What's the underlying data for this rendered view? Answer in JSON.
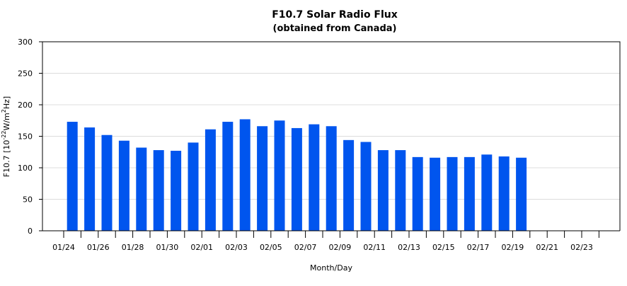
{
  "chart_data": {
    "type": "bar",
    "title": "F10.7 Solar Radio Flux",
    "subtitle": "(obtained from Canada)",
    "xlabel": "Month/Day",
    "ylabel_prefix": "F10.7 [10",
    "ylabel_exp1": "-22",
    "ylabel_mid": "W/m",
    "ylabel_exp2": "2",
    "ylabel_suffix": "Hz]",
    "ylim": [
      0,
      300
    ],
    "yticks": [
      0,
      50,
      100,
      150,
      200,
      250,
      300
    ],
    "grid": true,
    "bar_color": "#0055ee",
    "categories": [
      "01/24",
      "01/25",
      "01/26",
      "01/27",
      "01/28",
      "01/29",
      "01/30",
      "01/31",
      "02/01",
      "02/02",
      "02/03",
      "02/04",
      "02/05",
      "02/06",
      "02/07",
      "02/08",
      "02/09",
      "02/10",
      "02/11",
      "02/12",
      "02/13",
      "02/14",
      "02/15",
      "02/16",
      "02/17",
      "02/18",
      "02/19",
      "02/20",
      "02/21",
      "02/22",
      "02/23"
    ],
    "tick_labels": [
      "01/24",
      "01/26",
      "01/28",
      "01/30",
      "02/01",
      "02/03",
      "02/05",
      "02/07",
      "02/09",
      "02/11",
      "02/13",
      "02/15",
      "02/17",
      "02/19",
      "02/21",
      "02/23"
    ],
    "values": [
      173,
      164,
      152,
      143,
      132,
      128,
      127,
      140,
      161,
      173,
      177,
      166,
      175,
      163,
      169,
      166,
      144,
      141,
      128,
      128,
      117,
      116,
      117,
      117,
      121,
      118,
      116,
      null,
      null,
      null,
      null
    ]
  }
}
